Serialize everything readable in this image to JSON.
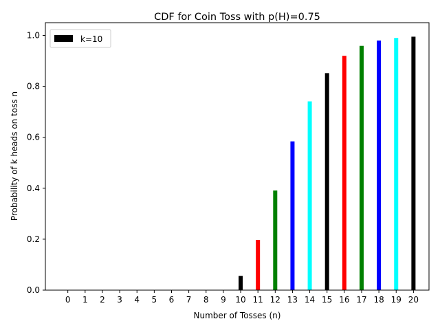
{
  "chart_data": {
    "type": "bar",
    "title": "CDF for Coin Toss with p(H)=0.75",
    "xlabel": "Number of Tosses (n)",
    "ylabel": "Probability of k heads on toss n",
    "categories": [
      "0",
      "1",
      "2",
      "3",
      "4",
      "5",
      "6",
      "7",
      "8",
      "9",
      "10",
      "11",
      "12",
      "13",
      "14",
      "15",
      "16",
      "17",
      "18",
      "19",
      "20"
    ],
    "series": [
      {
        "name": "k=10",
        "values": [
          0,
          0,
          0,
          0,
          0,
          0,
          0,
          0,
          0,
          0,
          0.056,
          0.197,
          0.391,
          0.584,
          0.741,
          0.852,
          0.92,
          0.959,
          0.98,
          0.99,
          0.995
        ],
        "colors": [
          "#000000",
          "#ff0000",
          "#008000",
          "#0000ff",
          "#00ffff",
          "#000000",
          "#ff0000",
          "#008000",
          "#0000ff",
          "#00ffff",
          "#000000",
          "#ff0000",
          "#008000",
          "#0000ff",
          "#00ffff",
          "#000000",
          "#ff0000",
          "#008000",
          "#0000ff",
          "#00ffff",
          "#000000"
        ]
      }
    ],
    "ylim": [
      0,
      1.05
    ],
    "yticks": [
      "0.0",
      "0.2",
      "0.4",
      "0.6",
      "0.8",
      "1.0"
    ],
    "grid": false,
    "legend_position": "top-left",
    "legend_color": "#000000"
  }
}
